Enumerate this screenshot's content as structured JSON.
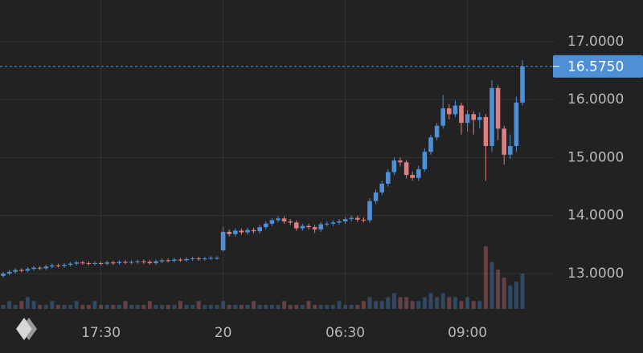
{
  "chart_data": {
    "type": "candlestick",
    "up_color": "#4e8fd6",
    "down_color": "#e07f80",
    "grid": true,
    "ylim": [
      12.39,
      17.72
    ],
    "yticks": [
      {
        "value": 13,
        "label": "13.0000"
      },
      {
        "value": 14,
        "label": "14.0000"
      },
      {
        "value": 15,
        "label": "15.0000"
      },
      {
        "value": 16,
        "label": "16.0000"
      },
      {
        "value": 17,
        "label": "17.0000"
      }
    ],
    "xticks": [
      {
        "value": 16,
        "label": "17:30"
      },
      {
        "value": 36,
        "label": "20"
      },
      {
        "value": 56,
        "label": "06:30"
      },
      {
        "value": 76,
        "label": "09:00"
      }
    ],
    "last_price": {
      "value": 16.575,
      "label": "16.5750"
    },
    "open": [
      12.96,
      13.0,
      13.03,
      13.06,
      13.05,
      13.08,
      13.1,
      13.09,
      13.12,
      13.14,
      13.13,
      13.15,
      13.17,
      13.19,
      13.18,
      13.17,
      13.18,
      13.17,
      13.19,
      13.18,
      13.2,
      13.19,
      13.2,
      13.21,
      13.2,
      13.18,
      13.21,
      13.23,
      13.22,
      13.24,
      13.23,
      13.25,
      13.26,
      13.25,
      13.26,
      13.27,
      13.4,
      13.72,
      13.68,
      13.74,
      13.71,
      13.75,
      13.73,
      13.8,
      13.86,
      13.92,
      13.95,
      13.9,
      13.88,
      13.78,
      13.82,
      13.8,
      13.76,
      13.85,
      13.86,
      13.88,
      13.9,
      13.94,
      13.96,
      13.93,
      13.92,
      14.25,
      14.4,
      14.55,
      14.75,
      14.95,
      14.92,
      14.7,
      14.65,
      14.8,
      15.1,
      15.35,
      15.55,
      15.85,
      15.75,
      15.9,
      15.6,
      15.75,
      15.65,
      15.7,
      15.2,
      16.2,
      15.5,
      15.05,
      15.2,
      15.95
    ],
    "high": [
      13.03,
      13.06,
      13.09,
      13.09,
      13.11,
      13.13,
      13.13,
      13.15,
      13.17,
      13.17,
      13.18,
      13.2,
      13.22,
      13.22,
      13.21,
      13.21,
      13.21,
      13.22,
      13.22,
      13.23,
      13.23,
      13.23,
      13.24,
      13.24,
      13.23,
      13.24,
      13.26,
      13.26,
      13.27,
      13.27,
      13.28,
      13.29,
      13.29,
      13.29,
      13.3,
      13.3,
      13.8,
      13.76,
      13.78,
      13.78,
      13.79,
      13.79,
      13.84,
      13.9,
      13.96,
      13.99,
      13.99,
      13.94,
      13.92,
      13.86,
      13.86,
      13.84,
      13.89,
      13.9,
      13.92,
      13.94,
      13.98,
      14.0,
      14.0,
      13.97,
      14.3,
      14.45,
      14.6,
      14.8,
      15.0,
      15.0,
      14.96,
      14.76,
      14.86,
      15.16,
      15.4,
      15.6,
      16.08,
      15.92,
      15.98,
      15.95,
      15.82,
      15.8,
      15.78,
      15.75,
      16.33,
      16.25,
      15.55,
      15.4,
      16.05,
      16.68
    ],
    "low": [
      12.93,
      12.97,
      13.0,
      13.02,
      13.02,
      13.05,
      13.06,
      13.06,
      13.09,
      13.1,
      13.1,
      13.12,
      13.14,
      13.15,
      13.14,
      13.14,
      13.14,
      13.14,
      13.15,
      13.15,
      13.16,
      13.16,
      13.17,
      13.17,
      13.15,
      13.15,
      13.18,
      13.19,
      13.19,
      13.2,
      13.2,
      13.22,
      13.22,
      13.22,
      13.23,
      13.24,
      13.38,
      13.64,
      13.64,
      13.67,
      13.67,
      13.69,
      13.69,
      13.76,
      13.82,
      13.88,
      13.86,
      13.84,
      13.74,
      13.74,
      13.76,
      13.7,
      13.72,
      13.81,
      13.82,
      13.84,
      13.86,
      13.9,
      13.89,
      13.88,
      13.88,
      14.2,
      14.35,
      14.5,
      14.7,
      14.85,
      14.64,
      14.6,
      14.6,
      14.76,
      15.05,
      15.3,
      15.5,
      15.66,
      15.7,
      15.4,
      15.45,
      15.4,
      15.5,
      14.6,
      15.1,
      15.3,
      14.88,
      14.98,
      15.1,
      15.9
    ],
    "close": [
      13.0,
      13.03,
      13.06,
      13.05,
      13.08,
      13.1,
      13.09,
      13.12,
      13.14,
      13.13,
      13.15,
      13.17,
      13.19,
      13.18,
      13.17,
      13.18,
      13.17,
      13.19,
      13.18,
      13.2,
      13.19,
      13.2,
      13.21,
      13.2,
      13.18,
      13.21,
      13.23,
      13.22,
      13.24,
      13.23,
      13.25,
      13.26,
      13.25,
      13.26,
      13.27,
      13.27,
      13.72,
      13.68,
      13.74,
      13.71,
      13.75,
      13.73,
      13.8,
      13.86,
      13.92,
      13.95,
      13.9,
      13.88,
      13.78,
      13.82,
      13.8,
      13.76,
      13.85,
      13.86,
      13.88,
      13.9,
      13.94,
      13.96,
      13.93,
      13.92,
      14.25,
      14.4,
      14.55,
      14.75,
      14.95,
      14.92,
      14.7,
      14.65,
      14.8,
      15.1,
      15.35,
      15.55,
      15.85,
      15.75,
      15.9,
      15.6,
      15.75,
      15.65,
      15.7,
      15.2,
      16.2,
      15.5,
      15.05,
      15.2,
      15.95,
      16.575
    ],
    "volume": [
      1,
      2,
      1,
      2,
      3,
      2,
      1,
      1,
      2,
      1,
      1,
      1,
      2,
      1,
      1,
      2,
      1,
      1,
      1,
      1,
      2,
      1,
      1,
      1,
      2,
      1,
      1,
      1,
      1,
      2,
      1,
      1,
      2,
      1,
      1,
      1,
      2,
      1,
      1,
      1,
      1,
      2,
      1,
      1,
      1,
      1,
      2,
      1,
      1,
      1,
      2,
      1,
      1,
      1,
      1,
      2,
      1,
      1,
      1,
      2,
      3,
      2,
      2,
      3,
      4,
      3,
      3,
      2,
      2,
      3,
      4,
      3,
      4,
      3,
      3,
      2,
      3,
      2,
      2,
      16,
      12,
      10,
      8,
      6,
      7,
      9
    ]
  }
}
